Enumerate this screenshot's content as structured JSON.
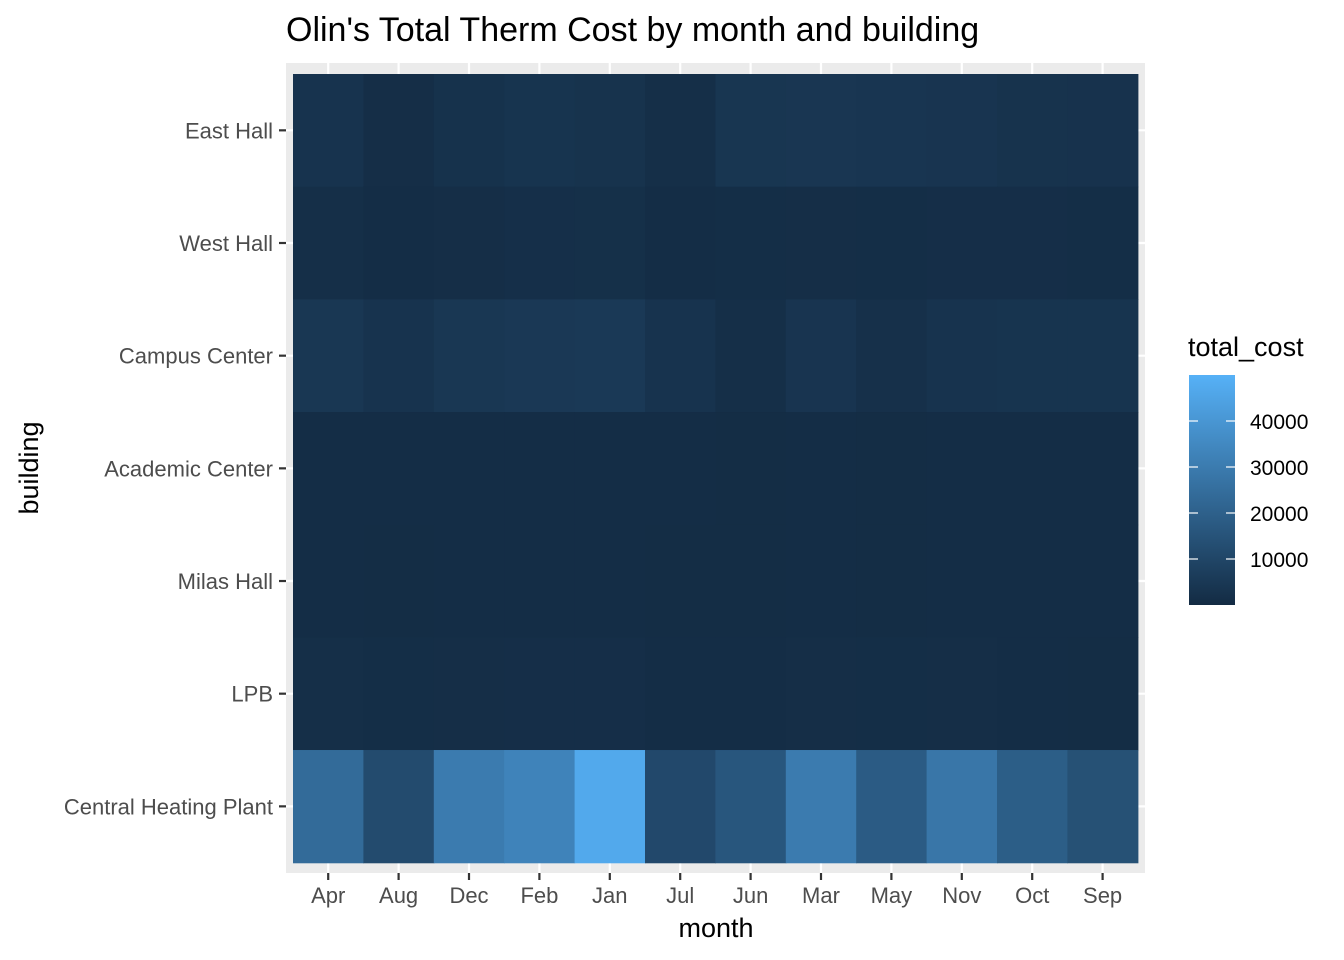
{
  "chart_data": {
    "type": "heatmap",
    "title": "Olin's Total Therm Cost by month and building",
    "xlabel": "month",
    "ylabel": "building",
    "x_categories": [
      "Apr",
      "Aug",
      "Dec",
      "Feb",
      "Jan",
      "Jul",
      "Jun",
      "Mar",
      "May",
      "Nov",
      "Oct",
      "Sep"
    ],
    "y_categories": [
      "East Hall",
      "West Hall",
      "Campus Center",
      "Academic Center",
      "Milas Hall",
      "LPB",
      "Central Heating Plant"
    ],
    "values": [
      [
        3000,
        1200,
        2500,
        3200,
        2800,
        1500,
        4000,
        4200,
        3800,
        3500,
        2900,
        2700
      ],
      [
        1500,
        900,
        1200,
        1600,
        1800,
        800,
        1100,
        1200,
        1100,
        1300,
        1300,
        1100
      ],
      [
        4500,
        3000,
        4500,
        5000,
        5200,
        3000,
        1400,
        3500,
        2000,
        3000,
        3200,
        3300
      ],
      [
        900,
        700,
        800,
        900,
        900,
        700,
        600,
        700,
        600,
        800,
        700,
        700
      ],
      [
        800,
        600,
        700,
        800,
        800,
        600,
        600,
        700,
        600,
        700,
        700,
        700
      ],
      [
        1400,
        1100,
        1200,
        1300,
        1300,
        900,
        900,
        1200,
        1000,
        1200,
        700,
        600
      ],
      [
        24000,
        12000,
        30000,
        33000,
        47000,
        11000,
        16000,
        30000,
        18000,
        28000,
        19000,
        14000
      ]
    ],
    "legend": {
      "title": "total_cost",
      "ticks": [
        10000,
        20000,
        30000,
        40000
      ],
      "tick_labels": [
        "10000",
        "20000",
        "30000",
        "40000"
      ],
      "range": [
        0,
        50000
      ],
      "low_color": "#132B43",
      "high_color": "#56B1F7",
      "placement": "right"
    },
    "panel_background": "#EBEBEB",
    "grid": true
  }
}
